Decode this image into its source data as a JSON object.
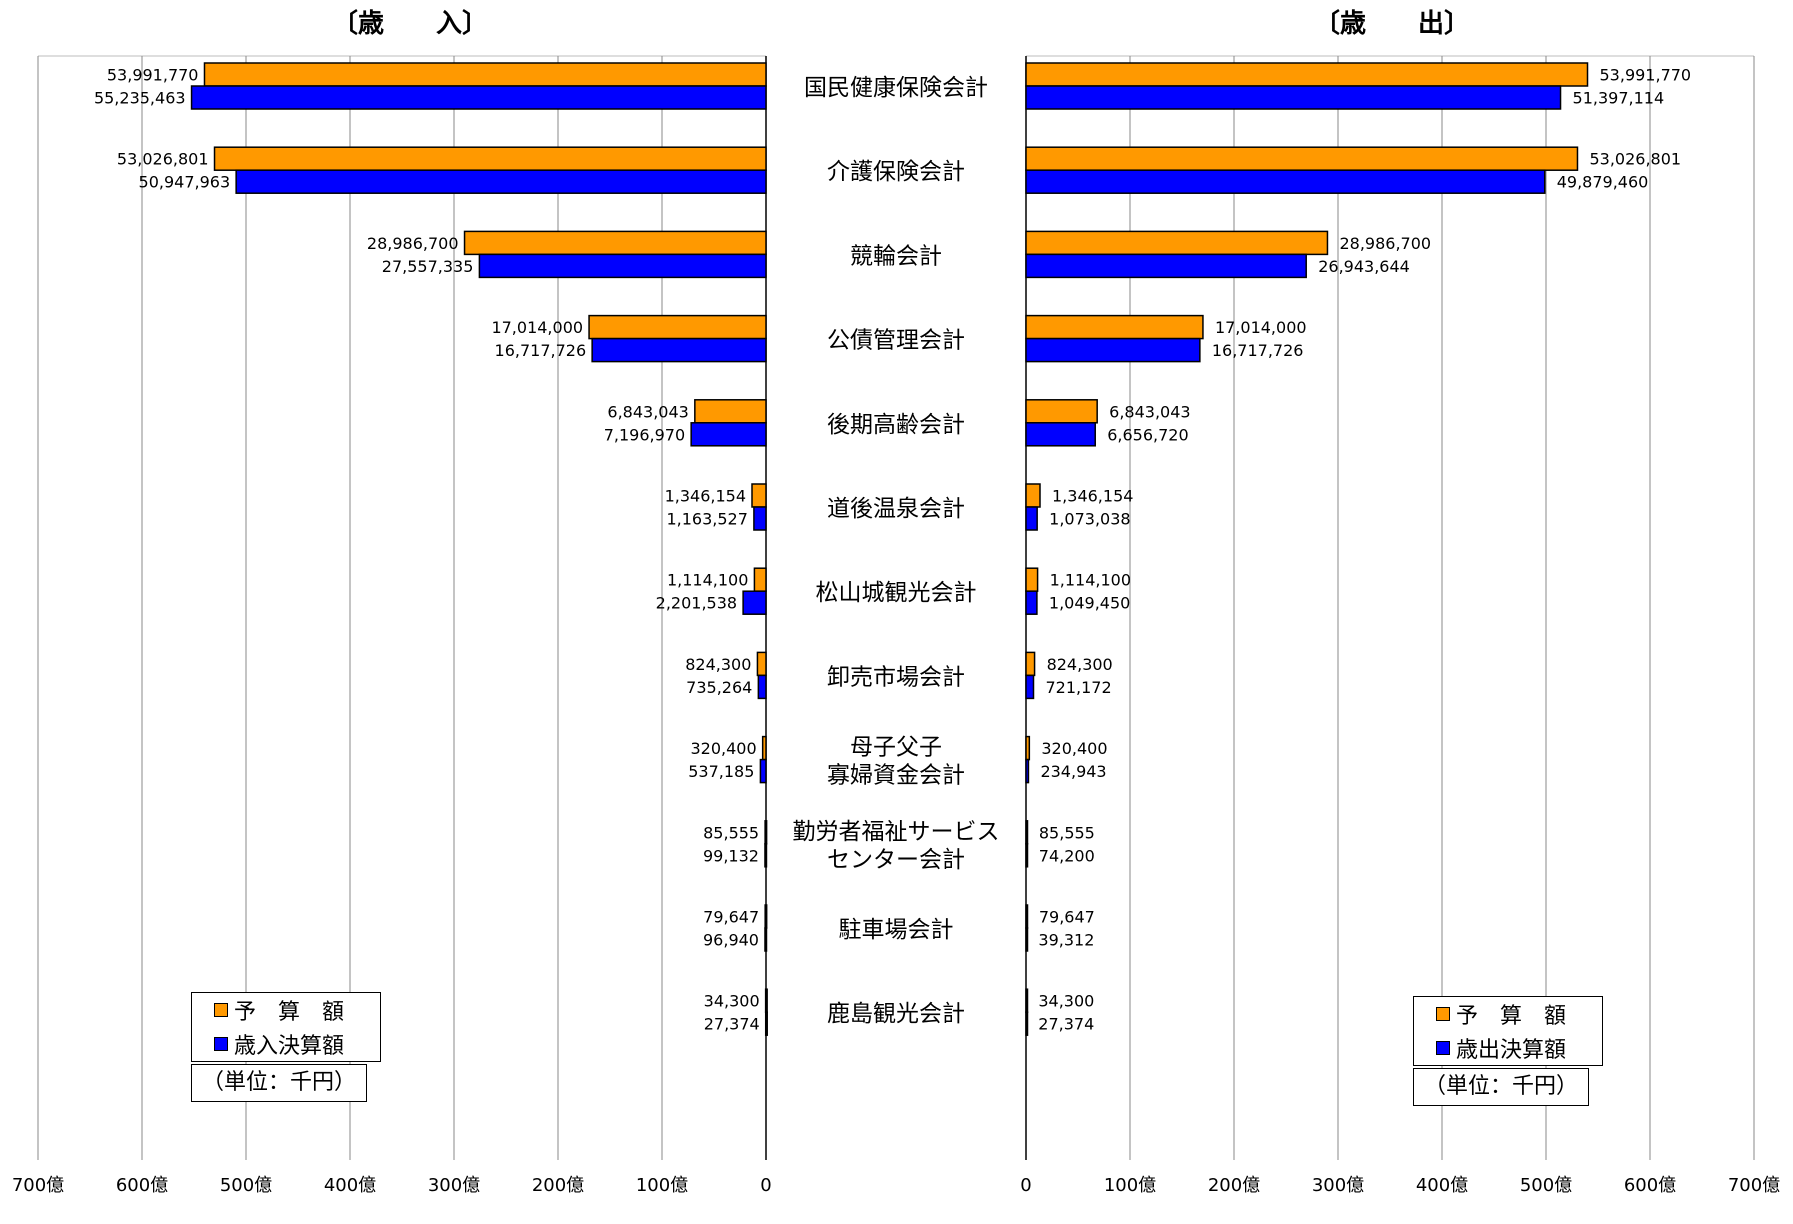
{
  "titles": {
    "left": "〔歳　　入〕",
    "right": "〔歳　　出〕"
  },
  "colors": {
    "budget": "#FF9900",
    "actual": "#0000FF"
  },
  "legend_left": {
    "budget": "予　算　額",
    "actual": "歳入決算額",
    "unit": "（単位：千円）"
  },
  "legend_right": {
    "budget": "予　算　額",
    "actual": "歳出決算額",
    "unit": "（単位：千円）"
  },
  "chart_data": [
    {
      "type": "bar",
      "orientation": "horizontal",
      "direction": "leftward",
      "title": "〔歳　　入〕",
      "categories": [
        "国民健康保険会計",
        "介護保険会計",
        "競輪会計",
        "公債管理会計",
        "後期高齢会計",
        "道後温泉会計",
        "松山城観光会計",
        "卸売市場会計",
        "母子父子\n寡婦資金会計",
        "勤労者福祉サービス\nセンター会計",
        "駐車場会計",
        "鹿島観光会計"
      ],
      "series": [
        {
          "name": "予　算　額",
          "values": [
            53991770,
            53026801,
            28986700,
            17014000,
            6843043,
            1346154,
            1114100,
            824300,
            320400,
            85555,
            79647,
            34300
          ],
          "labels": [
            "53,991,770",
            "53,026,801",
            "28,986,700",
            "17,014,000",
            "6,843,043",
            "1,346,154",
            "1,114,100",
            "824,300",
            "320,400",
            "85,555",
            "79,647",
            "34,300"
          ]
        },
        {
          "name": "歳入決算額",
          "values": [
            55235463,
            50947963,
            27557335,
            16717726,
            7196970,
            1163527,
            2201538,
            735264,
            537185,
            99132,
            96940,
            27374
          ],
          "labels": [
            "55,235,463",
            "50,947,963",
            "27,557,335",
            "16,717,726",
            "7,196,970",
            "1,163,527",
            "2,201,538",
            "735,264",
            "537,185",
            "99,132",
            "96,940",
            "27,374"
          ]
        }
      ],
      "xlim": [
        0,
        70000000
      ],
      "tick_values": [
        0,
        10000000,
        20000000,
        30000000,
        40000000,
        50000000,
        60000000,
        70000000
      ],
      "tick_labels": [
        "0",
        "100億",
        "200億",
        "300億",
        "400億",
        "500億",
        "600億",
        "700億"
      ],
      "grid": true,
      "legend": "bottom-left"
    },
    {
      "type": "bar",
      "orientation": "horizontal",
      "direction": "rightward",
      "title": "〔歳　　出〕",
      "categories": [
        "国民健康保険会計",
        "介護保険会計",
        "競輪会計",
        "公債管理会計",
        "後期高齢会計",
        "道後温泉会計",
        "松山城観光会計",
        "卸売市場会計",
        "母子父子\n寡婦資金会計",
        "勤労者福祉サービス\nセンター会計",
        "駐車場会計",
        "鹿島観光会計"
      ],
      "series": [
        {
          "name": "予　算　額",
          "values": [
            53991770,
            53026801,
            28986700,
            17014000,
            6843043,
            1346154,
            1114100,
            824300,
            320400,
            85555,
            79647,
            34300
          ],
          "labels": [
            "53,991,770",
            "53,026,801",
            "28,986,700",
            "17,014,000",
            "6,843,043",
            "1,346,154",
            "1,114,100",
            "824,300",
            "320,400",
            "85,555",
            "79,647",
            "34,300"
          ]
        },
        {
          "name": "歳出決算額",
          "values": [
            51397114,
            49879460,
            26943644,
            16717726,
            6656720,
            1073038,
            1049450,
            721172,
            234943,
            74200,
            39312,
            27374
          ],
          "labels": [
            "51,397,114",
            "49,879,460",
            "26,943,644",
            "16,717,726",
            "6,656,720",
            "1,073,038",
            "1,049,450",
            "721,172",
            "234,943",
            "74,200",
            "39,312",
            "27,374"
          ]
        }
      ],
      "xlim": [
        0,
        70000000
      ],
      "tick_values": [
        0,
        10000000,
        20000000,
        30000000,
        40000000,
        50000000,
        60000000,
        70000000
      ],
      "tick_labels": [
        "0",
        "100億",
        "200億",
        "300億",
        "400億",
        "500億",
        "600億",
        "700億"
      ],
      "grid": true,
      "legend": "bottom-right"
    }
  ]
}
